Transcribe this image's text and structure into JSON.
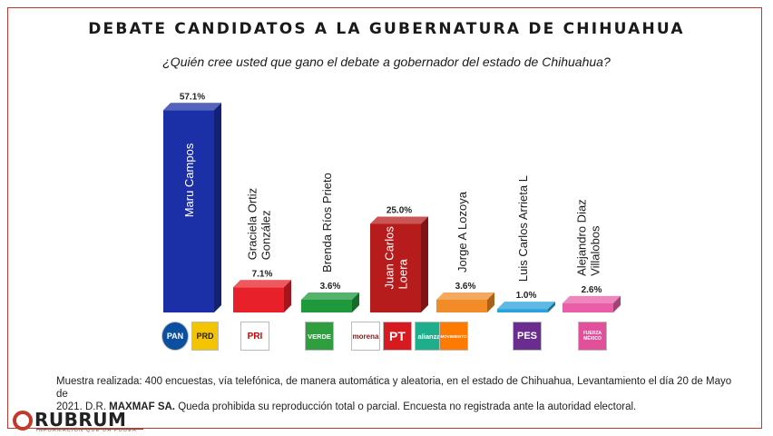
{
  "title": "DEBATE CANDIDATOS A LA GUBERNATURA DE CHIHUAHUA",
  "subtitle": "¿Quién cree usted que gano el debate a gobernador del estado de Chihuahua?",
  "chart_data": {
    "type": "bar",
    "categories": [
      "Maru Campos",
      "Graciela Ortiz González",
      "Brenda Ríos Prieto",
      "Juan Carlos Loera",
      "Jorge A Lozoya",
      "Luis Carlos Arrieta L",
      "Alejandro Diaz Villalobos"
    ],
    "category_lines": [
      [
        "Maru Campos"
      ],
      [
        "Graciela Ortiz",
        "González"
      ],
      [
        "Brenda Ríos Prieto"
      ],
      [
        "Juan Carlos",
        "Loera"
      ],
      [
        "Jorge A Lozoya"
      ],
      [
        "Luis Carlos Arrieta L"
      ],
      [
        "Alejandro Diaz",
        "Villalobos"
      ]
    ],
    "values": [
      57.1,
      7.1,
      3.6,
      25.0,
      3.6,
      1.0,
      2.6
    ],
    "value_labels": [
      "57.1%",
      "7.1%",
      "3.6%",
      "25.0%",
      "3.6%",
      "1.0%",
      "2.6%"
    ],
    "colors": [
      "#1b2fa6",
      "#e8202a",
      "#1e9a3c",
      "#b71c1c",
      "#f28c28",
      "#29a3dc",
      "#e85fa8"
    ],
    "label_inside_bar": [
      true,
      false,
      false,
      true,
      false,
      false,
      false
    ],
    "ylim": [
      0,
      60
    ]
  },
  "parties": [
    {
      "name": "PAN",
      "label": "PAN",
      "color": "#0a4fa0"
    },
    {
      "name": "PRD",
      "label": "PRD",
      "color": "#f5c400"
    },
    {
      "name": "PRI",
      "label": "PRI",
      "color": "#ffffff"
    },
    {
      "name": "VERDE",
      "label": "VERDE",
      "color": "#2e9e3f"
    },
    {
      "name": "morena",
      "label": "morena",
      "color": "#ffffff"
    },
    {
      "name": "PT",
      "label": "PT",
      "color": "#d71920"
    },
    {
      "name": "alianza",
      "label": "alianza",
      "color": "#1fae8c"
    },
    {
      "name": "MC",
      "label": "MOVIMIENTO",
      "color": "#ff7a00"
    },
    {
      "name": "PES",
      "label": "PES",
      "color": "#6a2c8f"
    },
    {
      "name": "FXM",
      "label": "FUERZA MÉXICO",
      "color": "#e24f9b"
    }
  ],
  "footnote": {
    "line1": "Muestra realizada: 400 encuestas, vía telefónica, de manera automática y aleatoria, en el estado de Chihuahua,  Levantamiento el día 20 de Mayo de",
    "line2_pre": "2021. D.R. ",
    "line2_bold": "MAXMAF SA.",
    "line2_post": " Queda prohibida su reproducción total o parcial. Encuesta no registrada ante la autoridad electoral."
  },
  "logo": {
    "name": "RUBRUM",
    "tagline": "INFORMACIÓN QUE DA PODER"
  }
}
